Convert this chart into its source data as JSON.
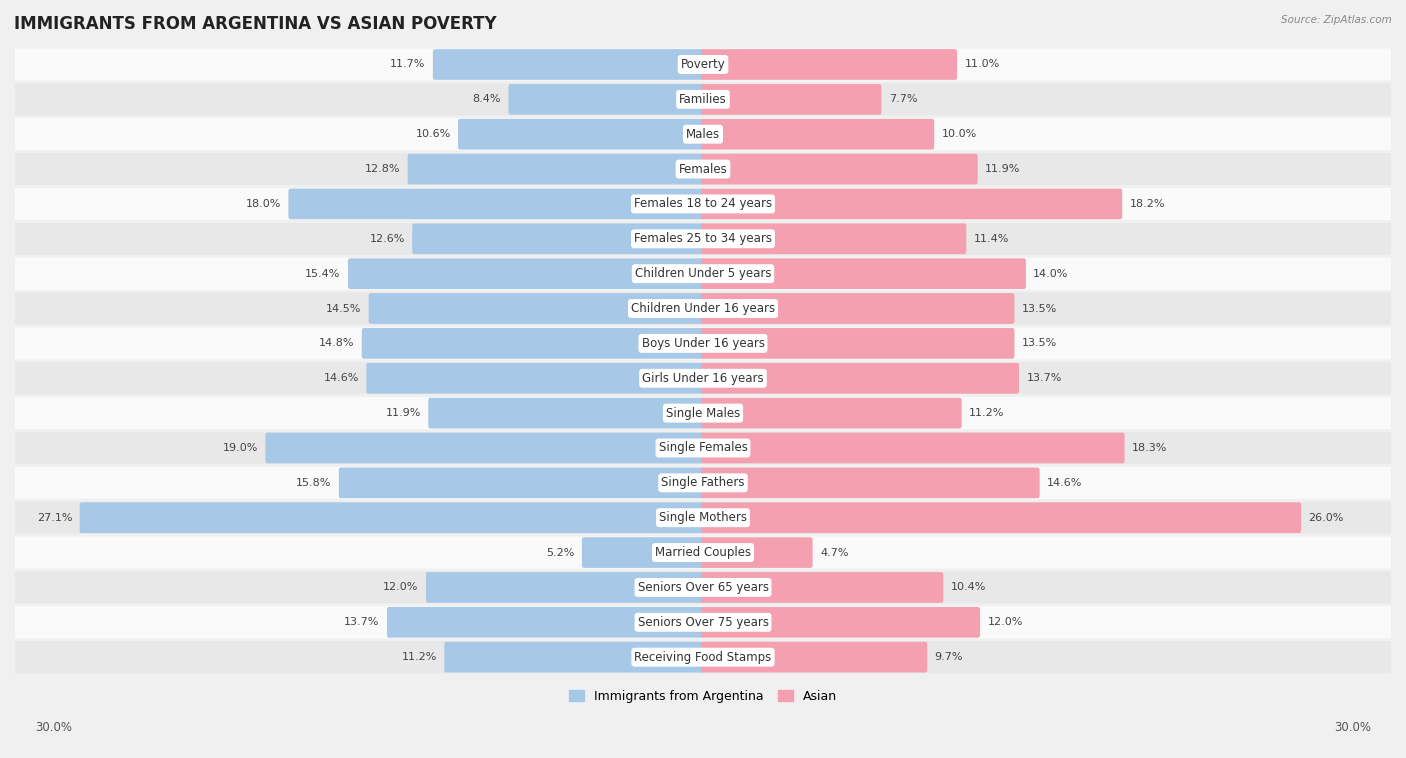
{
  "title": "IMMIGRANTS FROM ARGENTINA VS ASIAN POVERTY",
  "source": "Source: ZipAtlas.com",
  "categories": [
    "Poverty",
    "Families",
    "Males",
    "Females",
    "Females 18 to 24 years",
    "Females 25 to 34 years",
    "Children Under 5 years",
    "Children Under 16 years",
    "Boys Under 16 years",
    "Girls Under 16 years",
    "Single Males",
    "Single Females",
    "Single Fathers",
    "Single Mothers",
    "Married Couples",
    "Seniors Over 65 years",
    "Seniors Over 75 years",
    "Receiving Food Stamps"
  ],
  "left_values": [
    11.7,
    8.4,
    10.6,
    12.8,
    18.0,
    12.6,
    15.4,
    14.5,
    14.8,
    14.6,
    11.9,
    19.0,
    15.8,
    27.1,
    5.2,
    12.0,
    13.7,
    11.2
  ],
  "right_values": [
    11.0,
    7.7,
    10.0,
    11.9,
    18.2,
    11.4,
    14.0,
    13.5,
    13.5,
    13.7,
    11.2,
    18.3,
    14.6,
    26.0,
    4.7,
    10.4,
    12.0,
    9.7
  ],
  "left_color": "#a8c8e8",
  "right_color": "#f4a0b0",
  "background_color": "#f0f0f0",
  "row_bg_light": "#fafafa",
  "row_bg_dark": "#e8e8e8",
  "axis_max": 30.0,
  "legend_left": "Immigrants from Argentina",
  "legend_right": "Asian",
  "title_fontsize": 12,
  "label_fontsize": 8.5,
  "value_fontsize": 8
}
